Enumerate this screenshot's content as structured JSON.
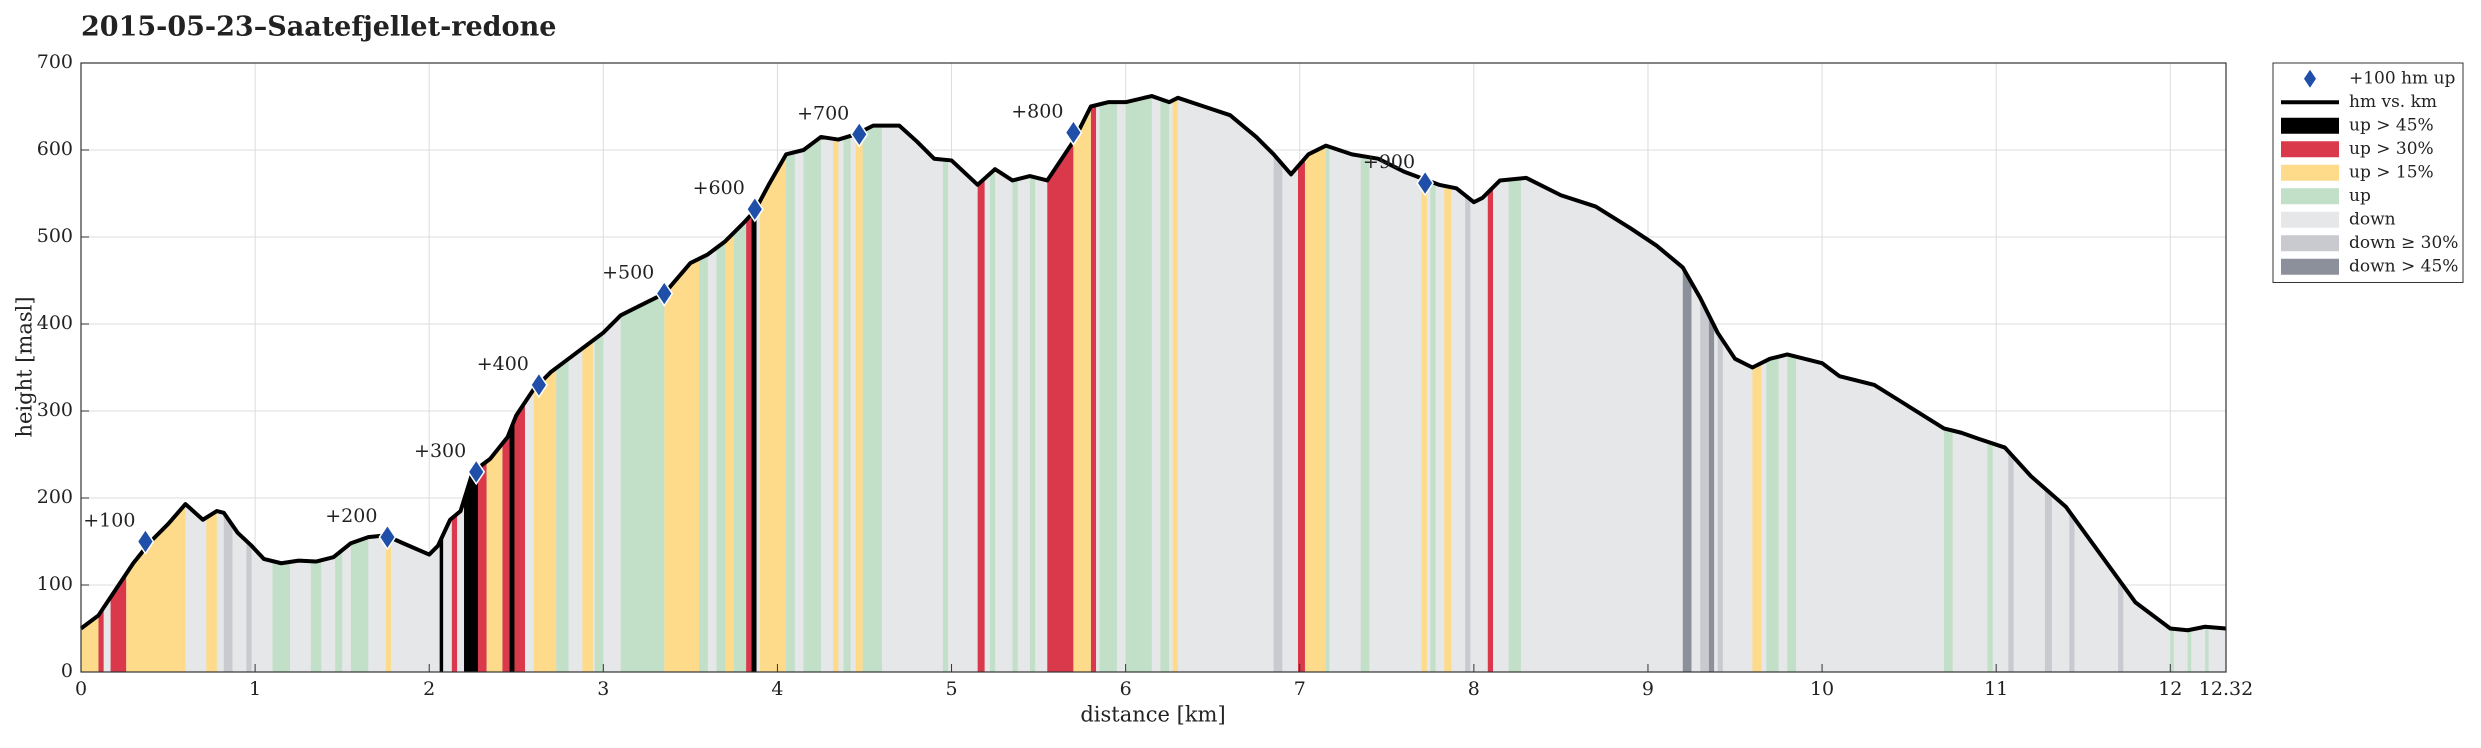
{
  "chart_data": {
    "type": "area",
    "title": "2015-05-23–Saatefjellet-redone",
    "xlabel": "distance [km]",
    "ylabel": "height [masl]",
    "xlim": [
      0,
      12.32
    ],
    "ylim": [
      0,
      700
    ],
    "xticks": [
      0,
      1,
      2,
      3,
      4,
      5,
      6,
      7,
      8,
      9,
      10,
      11,
      12,
      12.32
    ],
    "yticks": [
      0,
      100,
      200,
      300,
      400,
      500,
      600,
      700
    ],
    "grid": true,
    "legend": "outside right",
    "markers": {
      "name": "+100 hm up",
      "color": "#1f4fa8",
      "x": [
        0.37,
        1.76,
        2.27,
        2.63,
        3.35,
        3.87,
        4.47,
        5.7,
        7.72
      ],
      "y": [
        150,
        155,
        230,
        330,
        435,
        532,
        618,
        620,
        562
      ],
      "labels": [
        "+100",
        "+200",
        "+300",
        "+400",
        "+500",
        "+600",
        "+700",
        "+800",
        "+900"
      ]
    },
    "line": {
      "name": "hm vs. km",
      "color": "#000000",
      "x": [
        0,
        0.1,
        0.2,
        0.3,
        0.4,
        0.5,
        0.6,
        0.7,
        0.78,
        0.82,
        0.9,
        0.98,
        1.05,
        1.15,
        1.25,
        1.35,
        1.45,
        1.55,
        1.65,
        1.75,
        1.85,
        2.0,
        2.05,
        2.12,
        2.18,
        2.25,
        2.35,
        2.45,
        2.5,
        2.6,
        2.7,
        2.8,
        2.9,
        3.0,
        3.1,
        3.2,
        3.35,
        3.5,
        3.6,
        3.7,
        3.8,
        3.87,
        3.95,
        4.05,
        4.15,
        4.25,
        4.35,
        4.45,
        4.55,
        4.7,
        4.8,
        4.9,
        5.0,
        5.15,
        5.25,
        5.35,
        5.45,
        5.55,
        5.7,
        5.8,
        5.9,
        6.0,
        6.15,
        6.25,
        6.3,
        6.45,
        6.6,
        6.75,
        6.85,
        6.95,
        7.05,
        7.15,
        7.3,
        7.45,
        7.6,
        7.8,
        7.9,
        8.0,
        8.05,
        8.15,
        8.3,
        8.5,
        8.7,
        8.9,
        9.05,
        9.2,
        9.3,
        9.4,
        9.5,
        9.6,
        9.7,
        9.8,
        10.0,
        10.1,
        10.3,
        10.5,
        10.7,
        10.8,
        10.9,
        11.05,
        11.2,
        11.4,
        11.6,
        11.8,
        12.0,
        12.1,
        12.2,
        12.32
      ],
      "y": [
        50,
        65,
        95,
        125,
        150,
        170,
        193,
        175,
        185,
        183,
        160,
        145,
        130,
        125,
        128,
        127,
        132,
        148,
        155,
        157,
        148,
        135,
        145,
        175,
        185,
        230,
        245,
        270,
        295,
        325,
        345,
        360,
        375,
        390,
        410,
        420,
        435,
        470,
        480,
        495,
        515,
        530,
        560,
        595,
        600,
        615,
        612,
        618,
        628,
        628,
        610,
        590,
        588,
        560,
        578,
        565,
        570,
        565,
        610,
        650,
        655,
        655,
        662,
        655,
        660,
        650,
        640,
        615,
        595,
        572,
        595,
        605,
        595,
        590,
        575,
        560,
        556,
        540,
        545,
        565,
        568,
        548,
        535,
        510,
        490,
        465,
        430,
        390,
        360,
        350,
        360,
        365,
        355,
        340,
        330,
        305,
        280,
        275,
        268,
        258,
        225,
        190,
        135,
        80,
        50,
        48,
        52,
        50
      ]
    },
    "bands": [
      {
        "name": "up > 45%",
        "color": "#000000",
        "ranges": [
          [
            2.06,
            2.08
          ],
          [
            2.2,
            2.28
          ],
          [
            2.46,
            2.49
          ],
          [
            3.85,
            3.88
          ]
        ]
      },
      {
        "name": "up > 30%",
        "color": "#d9394a",
        "ranges": [
          [
            0.1,
            0.13
          ],
          [
            0.17,
            0.26
          ],
          [
            2.13,
            2.16
          ],
          [
            2.28,
            2.33
          ],
          [
            2.42,
            2.46
          ],
          [
            2.49,
            2.55
          ],
          [
            3.82,
            3.85
          ],
          [
            5.15,
            5.19
          ],
          [
            5.55,
            5.7
          ],
          [
            5.8,
            5.83
          ],
          [
            6.99,
            7.03
          ],
          [
            8.08,
            8.11
          ]
        ]
      },
      {
        "name": "up > 15%",
        "color": "#fddb8b",
        "ranges": [
          [
            0,
            0.1
          ],
          [
            0.26,
            0.6
          ],
          [
            0.72,
            0.78
          ],
          [
            1.75,
            1.78
          ],
          [
            2.33,
            2.42
          ],
          [
            2.6,
            2.73
          ],
          [
            2.88,
            2.94
          ],
          [
            3.35,
            3.55
          ],
          [
            3.7,
            3.75
          ],
          [
            3.9,
            4.05
          ],
          [
            4.32,
            4.35
          ],
          [
            4.45,
            4.49
          ],
          [
            5.7,
            5.8
          ],
          [
            6.27,
            6.3
          ],
          [
            7.03,
            7.15
          ],
          [
            7.7,
            7.73
          ],
          [
            7.83,
            7.87
          ],
          [
            9.6,
            9.65
          ]
        ]
      },
      {
        "name": "up",
        "color": "#c2dfc8",
        "ranges": [
          [
            1.1,
            1.2
          ],
          [
            1.32,
            1.38
          ],
          [
            1.46,
            1.5
          ],
          [
            1.55,
            1.65
          ],
          [
            2.73,
            2.8
          ],
          [
            2.95,
            3.0
          ],
          [
            3.1,
            3.35
          ],
          [
            3.55,
            3.6
          ],
          [
            3.65,
            3.7
          ],
          [
            3.75,
            3.82
          ],
          [
            4.05,
            4.1
          ],
          [
            4.15,
            4.25
          ],
          [
            4.38,
            4.42
          ],
          [
            4.49,
            4.6
          ],
          [
            4.95,
            4.98
          ],
          [
            5.22,
            5.25
          ],
          [
            5.35,
            5.38
          ],
          [
            5.45,
            5.48
          ],
          [
            5.85,
            5.95
          ],
          [
            6.0,
            6.15
          ],
          [
            6.2,
            6.25
          ],
          [
            7.15,
            7.17
          ],
          [
            7.35,
            7.4
          ],
          [
            7.75,
            7.78
          ],
          [
            8.2,
            8.27
          ],
          [
            9.68,
            9.75
          ],
          [
            9.8,
            9.85
          ],
          [
            10.7,
            10.75
          ],
          [
            10.95,
            10.98
          ],
          [
            12.0,
            12.02
          ],
          [
            12.1,
            12.12
          ],
          [
            12.2,
            12.22
          ]
        ]
      },
      {
        "name": "down",
        "color": "#e6e7e9"
      },
      {
        "name": "down ≥ 30%",
        "color": "#c8cad0",
        "ranges": [
          [
            0.82,
            0.87
          ],
          [
            0.95,
            0.98
          ],
          [
            6.85,
            6.9
          ],
          [
            7.95,
            7.98
          ],
          [
            9.3,
            9.35
          ],
          [
            9.4,
            9.43
          ],
          [
            11.07,
            11.1
          ],
          [
            11.28,
            11.32
          ],
          [
            11.42,
            11.45
          ],
          [
            11.7,
            11.73
          ]
        ]
      },
      {
        "name": "down > 45%",
        "color": "#8c909b",
        "ranges": [
          [
            9.2,
            9.25
          ],
          [
            9.35,
            9.38
          ]
        ]
      }
    ]
  }
}
